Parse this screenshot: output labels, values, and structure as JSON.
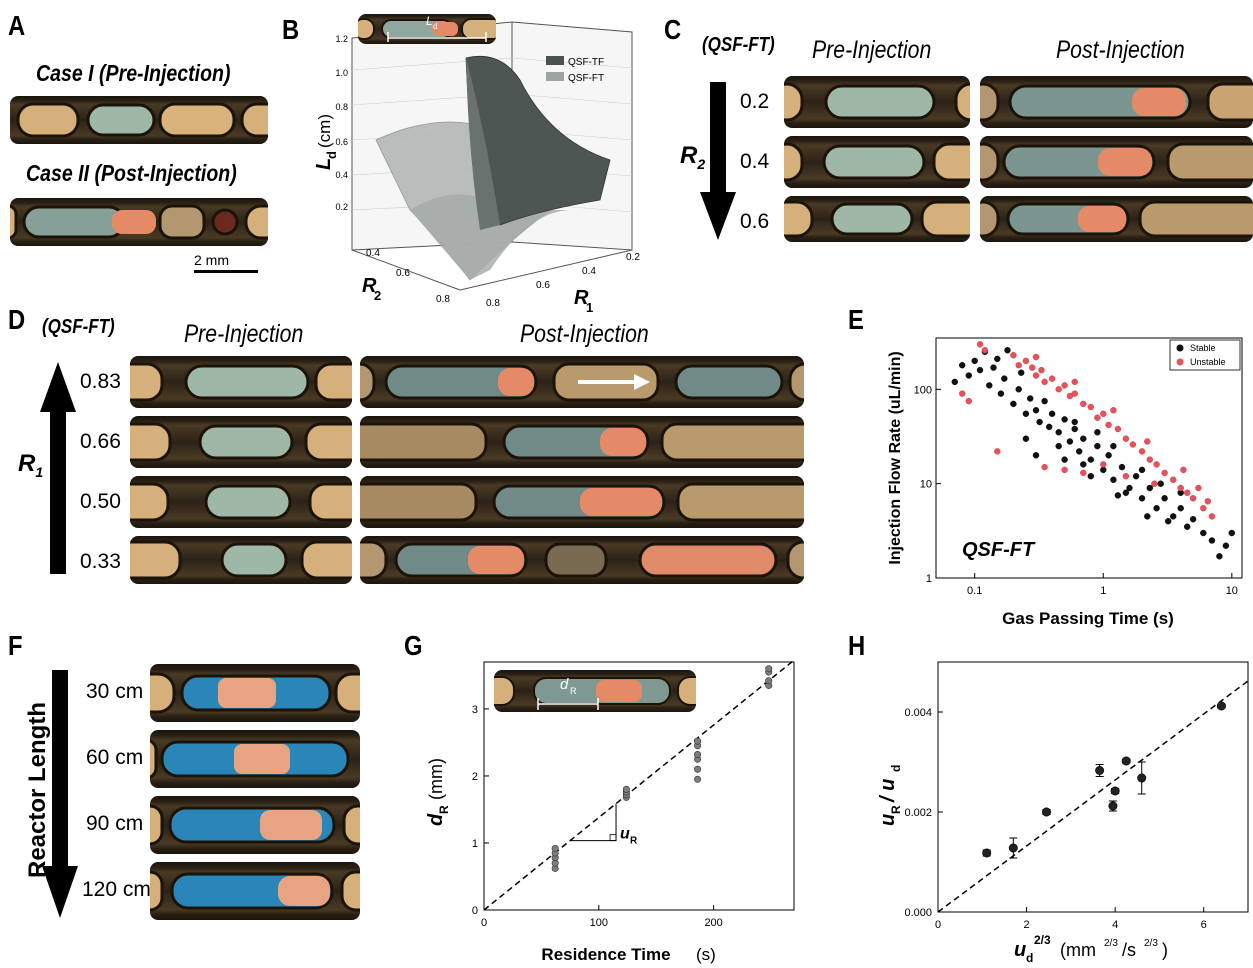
{
  "panels": {
    "A": {
      "label": "A",
      "case1": "Case I (Pre-Injection)",
      "case2": "Case II (Post-Injection)",
      "scalebar": "2 mm"
    },
    "B": {
      "label": "B",
      "inset_label": "L",
      "inset_sub": "d",
      "zlabel": "L",
      "zlabel_sub": "d",
      "zlabel_unit": "(cm)",
      "xlabel": "R",
      "xlabel_sub": "2",
      "ylabel": "R",
      "ylabel_sub": "1",
      "legend": [
        "QSF-TF",
        "QSF-FT"
      ],
      "legend_colors": [
        "#4a5250",
        "#9ea4a2"
      ],
      "zticks": [
        "1.2",
        "1.0",
        "0.8",
        "0.6",
        "0.4",
        "0.2"
      ],
      "r2ticks": [
        "0.4",
        "0.6",
        "0.8"
      ],
      "r1ticks": [
        "0.2",
        "0.4",
        "0.6",
        "0.8"
      ]
    },
    "C": {
      "label": "C",
      "qsf": "(QSF-FT)",
      "pre": "Pre-Injection",
      "post": "Post-Injection",
      "axis": "R",
      "axis_sub": "2",
      "rows": [
        "0.2",
        "0.4",
        "0.6"
      ]
    },
    "D": {
      "label": "D",
      "qsf": "(QSF-FT)",
      "pre": "Pre-Injection",
      "post": "Post-Injection",
      "axis": "R",
      "axis_sub": "1",
      "rows": [
        "0.83",
        "0.66",
        "0.50",
        "0.33"
      ]
    },
    "E": {
      "label": "E",
      "ylabel": "Injection Flow Rate (uL/min)",
      "xlabel": "Gas Passing Time (s)",
      "annotation": "QSF-FT",
      "legend": [
        "Stable",
        "Unstable"
      ],
      "colors": {
        "stable": "#111111",
        "unstable": "#e8505b"
      },
      "xticks": [
        "0.1",
        "1",
        "10"
      ],
      "yticks": [
        "1",
        "10",
        "100"
      ]
    },
    "F": {
      "label": "F",
      "axis": "Reactor Length",
      "rows": [
        "30 cm",
        "60 cm",
        "90 cm",
        "120 cm"
      ]
    },
    "G": {
      "label": "G",
      "ylabel": "d",
      "ylabel_sub": "R",
      "ylabel_unit": "(mm)",
      "xlabel": "Residence Time",
      "xlabel_unit": "(s)",
      "inset_label": "d",
      "inset_sub": "R",
      "slope_label": "u",
      "slope_sub": "R",
      "xticks": [
        "0",
        "100",
        "200"
      ],
      "yticks": [
        "0",
        "1",
        "2",
        "3"
      ]
    },
    "H": {
      "label": "H",
      "ylabel": "u",
      "ylabel_sub": "R",
      "ylabel_mid": " / u",
      "ylabel_sub2": "d",
      "xlabel": "u",
      "xlabel_sub": "d",
      "xlabel_sup": "2/3",
      "xlabel_unit": "(mm",
      "xlabel_unit_sup": "2/3",
      "xlabel_unit_mid": "/s",
      "xlabel_unit_sup2": "2/3",
      "xlabel_unit_end": ")",
      "xticks": [
        "0",
        "2",
        "4",
        "6"
      ],
      "yticks": [
        "0.000",
        "0.002",
        "0.004"
      ]
    }
  },
  "chart_data": [
    {
      "panel": "E",
      "type": "scatter",
      "xlabel": "Gas Passing Time (s)",
      "ylabel": "Injection Flow Rate (uL/min)",
      "xscale": "log",
      "yscale": "log",
      "xlim": [
        0.05,
        12
      ],
      "ylim": [
        1,
        350
      ],
      "legend": "top-right",
      "series": [
        {
          "name": "Stable",
          "points": [
            [
              0.07,
              120
            ],
            [
              0.08,
              180
            ],
            [
              0.09,
              140
            ],
            [
              0.1,
              200
            ],
            [
              0.11,
              160
            ],
            [
              0.12,
              250
            ],
            [
              0.13,
              110
            ],
            [
              0.14,
              170
            ],
            [
              0.15,
              210
            ],
            [
              0.16,
              90
            ],
            [
              0.17,
              130
            ],
            [
              0.18,
              260
            ],
            [
              0.2,
              70
            ],
            [
              0.22,
              100
            ],
            [
              0.23,
              150
            ],
            [
              0.25,
              55
            ],
            [
              0.27,
              80
            ],
            [
              0.3,
              60
            ],
            [
              0.32,
              45
            ],
            [
              0.35,
              75
            ],
            [
              0.38,
              40
            ],
            [
              0.4,
              55
            ],
            [
              0.45,
              35
            ],
            [
              0.5,
              48
            ],
            [
              0.55,
              28
            ],
            [
              0.6,
              38
            ],
            [
              0.65,
              22
            ],
            [
              0.7,
              30
            ],
            [
              0.8,
              18
            ],
            [
              0.9,
              25
            ],
            [
              1.0,
              14
            ],
            [
              1.1,
              20
            ],
            [
              1.2,
              11
            ],
            [
              1.4,
              15
            ],
            [
              1.6,
              9
            ],
            [
              1.8,
              12
            ],
            [
              2.0,
              7
            ],
            [
              2.3,
              9
            ],
            [
              2.6,
              5.5
            ],
            [
              3.0,
              7
            ],
            [
              3.5,
              4.5
            ],
            [
              4.0,
              5.5
            ],
            [
              4.5,
              3.5
            ],
            [
              5.0,
              4.2
            ],
            [
              6.0,
              3.0
            ],
            [
              7.0,
              2.5
            ],
            [
              8.0,
              1.7
            ],
            [
              9.0,
              2.2
            ],
            [
              10.0,
              3.0
            ],
            [
              0.3,
              20
            ],
            [
              0.5,
              18
            ],
            [
              0.8,
              12
            ],
            [
              1.3,
              7.5
            ],
            [
              2.2,
              4.5
            ],
            [
              0.25,
              30
            ],
            [
              0.45,
              25
            ],
            [
              0.7,
              16
            ],
            [
              1.5,
              8
            ],
            [
              3.2,
              4.0
            ],
            [
              0.6,
              45
            ],
            [
              0.9,
              35
            ],
            [
              1.2,
              25
            ],
            [
              2.0,
              14
            ],
            [
              2.8,
              10
            ],
            [
              4.0,
              8
            ]
          ]
        },
        {
          "name": "Unstable",
          "points": [
            [
              0.08,
              90
            ],
            [
              0.09,
              75
            ],
            [
              0.11,
              300
            ],
            [
              0.12,
              260
            ],
            [
              0.15,
              22
            ],
            [
              0.2,
              230
            ],
            [
              0.22,
              180
            ],
            [
              0.25,
              200
            ],
            [
              0.28,
              170
            ],
            [
              0.3,
              140
            ],
            [
              0.33,
              160
            ],
            [
              0.35,
              120
            ],
            [
              0.4,
              130
            ],
            [
              0.45,
              100
            ],
            [
              0.5,
              110
            ],
            [
              0.55,
              85
            ],
            [
              0.6,
              90
            ],
            [
              0.7,
              70
            ],
            [
              0.8,
              65
            ],
            [
              0.9,
              50
            ],
            [
              1.0,
              55
            ],
            [
              1.1,
              42
            ],
            [
              1.3,
              38
            ],
            [
              1.5,
              30
            ],
            [
              1.7,
              26
            ],
            [
              2.0,
              22
            ],
            [
              2.3,
              18
            ],
            [
              2.6,
              16
            ],
            [
              3.0,
              13
            ],
            [
              3.5,
              11
            ],
            [
              4.0,
              9
            ],
            [
              4.5,
              8
            ],
            [
              5.0,
              7
            ],
            [
              6.0,
              5.5
            ],
            [
              7.0,
              4.5
            ],
            [
              0.35,
              15
            ],
            [
              0.5,
              14
            ],
            [
              0.7,
              13
            ],
            [
              1.0,
              16
            ],
            [
              1.5,
              12
            ],
            [
              2.5,
              10
            ],
            [
              0.3,
              220
            ],
            [
              0.6,
              120
            ],
            [
              1.2,
              60
            ],
            [
              2.2,
              28
            ],
            [
              4.2,
              14
            ],
            [
              5.5,
              9
            ],
            [
              6.5,
              6.5
            ]
          ]
        }
      ]
    },
    {
      "panel": "G",
      "type": "scatter",
      "xlabel": "Residence Time (s)",
      "ylabel": "d_R (mm)",
      "xlim": [
        0,
        270
      ],
      "ylim": [
        0,
        3.7
      ],
      "series": [
        {
          "name": "",
          "points": [
            [
              62,
              0.62
            ],
            [
              62,
              0.7
            ],
            [
              62,
              0.78
            ],
            [
              62,
              0.85
            ],
            [
              62,
              0.92
            ],
            [
              124,
              1.68
            ],
            [
              124,
              1.72
            ],
            [
              124,
              1.76
            ],
            [
              124,
              1.8
            ],
            [
              186,
              1.95
            ],
            [
              186,
              2.1
            ],
            [
              186,
              2.25
            ],
            [
              186,
              2.32
            ],
            [
              186,
              2.45
            ],
            [
              186,
              2.52
            ],
            [
              248,
              3.35
            ],
            [
              248,
              3.42
            ],
            [
              248,
              3.55
            ],
            [
              248,
              3.6
            ]
          ]
        }
      ],
      "fit_line": {
        "slope": 0.0138,
        "intercept": 0
      }
    },
    {
      "panel": "H",
      "type": "scatter",
      "xlabel": "u_d^2/3 (mm^2/3/s^2/3)",
      "ylabel": "u_R / u_d",
      "xlim": [
        0,
        7
      ],
      "ylim": [
        0,
        0.005
      ],
      "series": [
        {
          "name": "",
          "points": [
            [
              1.1,
              0.00118
            ],
            [
              1.7,
              0.00128
            ],
            [
              2.45,
              0.002
            ],
            [
              3.65,
              0.00283
            ],
            [
              3.95,
              0.00212
            ],
            [
              4.0,
              0.00242
            ],
            [
              4.25,
              0.00302
            ],
            [
              4.6,
              0.00268
            ],
            [
              6.4,
              0.00412
            ]
          ],
          "errors": [
            6e-05,
            0.0002,
            5e-05,
            0.00012,
            0.0001,
            5e-05,
            4e-05,
            0.00032,
            4e-05
          ]
        }
      ],
      "fit_line": {
        "slope": 0.00066,
        "intercept": 0
      }
    }
  ]
}
